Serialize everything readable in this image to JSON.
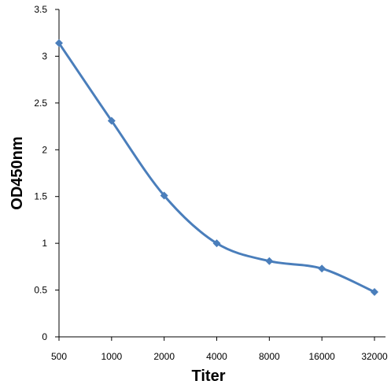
{
  "chart_data": {
    "type": "line",
    "title": "",
    "xlabel": "Titer",
    "ylabel": "OD450nm",
    "categories": [
      "500",
      "1000",
      "2000",
      "4000",
      "8000",
      "16000",
      "32000"
    ],
    "series": [
      {
        "values": [
          3.14,
          2.31,
          1.51,
          1.0,
          0.81,
          0.73,
          0.48
        ]
      }
    ],
    "ylim": [
      0,
      3.5
    ],
    "yticks": [
      "0",
      "0.5",
      "1",
      "1.5",
      "2",
      "2.5",
      "3",
      "3.5"
    ],
    "grid": false,
    "legend": "none",
    "line_color": "#4a7ebb",
    "marker": "diamond",
    "smooth": true
  }
}
